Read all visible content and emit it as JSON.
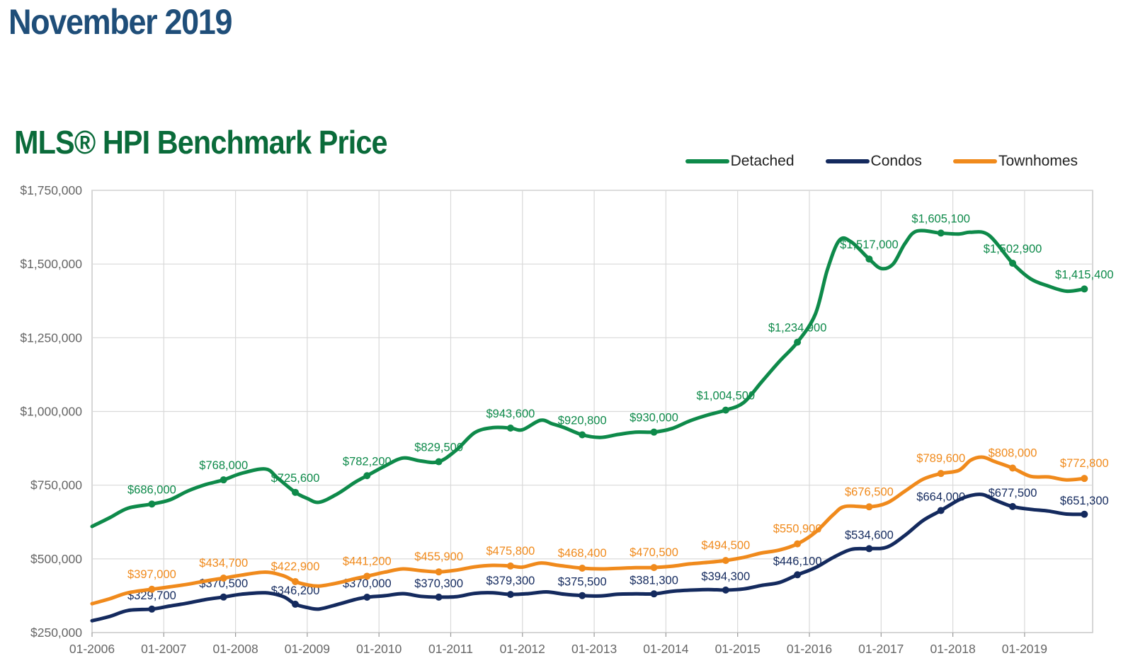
{
  "page": {
    "title": "November 2019"
  },
  "chart_data": {
    "type": "line",
    "title": "MLS® HPI Benchmark Price",
    "xlabel": "",
    "ylabel": "",
    "x_ticks": [
      "01-2006",
      "01-2007",
      "01-2008",
      "01-2009",
      "01-2010",
      "01-2011",
      "01-2012",
      "01-2013",
      "01-2014",
      "01-2015",
      "01-2016",
      "01-2017",
      "01-2018",
      "01-2019"
    ],
    "y_ticks": [
      "$250,000",
      "$500,000",
      "$750,000",
      "$1,000,000",
      "$1,250,000",
      "$1,500,000",
      "$1,750,000"
    ],
    "x_range": [
      "2006-01",
      "2019-11"
    ],
    "ylim": [
      250000,
      1750000
    ],
    "grid": true,
    "legend": "top-right",
    "series": [
      {
        "name": "Detached",
        "color": "#0e8a4a",
        "points": [
          [
            "2006-01",
            610000
          ],
          [
            "2006-04",
            640000
          ],
          [
            "2006-07",
            672000
          ],
          [
            "2006-11",
            686000
          ],
          [
            "2007-02",
            700000
          ],
          [
            "2007-05",
            730000
          ],
          [
            "2007-08",
            752000
          ],
          [
            "2007-11",
            768000
          ],
          [
            "2008-02",
            790000
          ],
          [
            "2008-06",
            805000
          ],
          [
            "2008-08",
            775000
          ],
          [
            "2008-11",
            725600
          ],
          [
            "2009-01",
            705000
          ],
          [
            "2009-03",
            692000
          ],
          [
            "2009-06",
            720000
          ],
          [
            "2009-09",
            760000
          ],
          [
            "2009-11",
            782200
          ],
          [
            "2010-02",
            815000
          ],
          [
            "2010-05",
            842000
          ],
          [
            "2010-08",
            832000
          ],
          [
            "2010-11",
            829500
          ],
          [
            "2011-02",
            870000
          ],
          [
            "2011-05",
            928000
          ],
          [
            "2011-08",
            945000
          ],
          [
            "2011-11",
            943600
          ],
          [
            "2012-01",
            938000
          ],
          [
            "2012-04",
            970000
          ],
          [
            "2012-06",
            958000
          ],
          [
            "2012-08",
            945000
          ],
          [
            "2012-11",
            920800
          ],
          [
            "2013-02",
            912000
          ],
          [
            "2013-05",
            922000
          ],
          [
            "2013-08",
            930000
          ],
          [
            "2013-11",
            930000
          ],
          [
            "2014-02",
            942000
          ],
          [
            "2014-05",
            968000
          ],
          [
            "2014-08",
            988000
          ],
          [
            "2014-11",
            1004500
          ],
          [
            "2015-02",
            1030000
          ],
          [
            "2015-05",
            1100000
          ],
          [
            "2015-08",
            1170000
          ],
          [
            "2015-11",
            1234900
          ],
          [
            "2016-02",
            1330000
          ],
          [
            "2016-04",
            1480000
          ],
          [
            "2016-06",
            1580000
          ],
          [
            "2016-08",
            1575000
          ],
          [
            "2016-11",
            1517000
          ],
          [
            "2017-01",
            1485000
          ],
          [
            "2017-03",
            1500000
          ],
          [
            "2017-05",
            1570000
          ],
          [
            "2017-07",
            1612000
          ],
          [
            "2017-11",
            1605100
          ],
          [
            "2018-02",
            1602000
          ],
          [
            "2018-04",
            1608000
          ],
          [
            "2018-07",
            1598000
          ],
          [
            "2018-11",
            1502900
          ],
          [
            "2019-02",
            1450000
          ],
          [
            "2019-05",
            1425000
          ],
          [
            "2019-08",
            1408000
          ],
          [
            "2019-11",
            1415400
          ]
        ],
        "labels": [
          {
            "x": "2006-11",
            "value": 686000,
            "text": "$686,000"
          },
          {
            "x": "2007-11",
            "value": 768000,
            "text": "$768,000"
          },
          {
            "x": "2008-11",
            "value": 725600,
            "text": "$725,600"
          },
          {
            "x": "2009-11",
            "value": 782200,
            "text": "$782,200"
          },
          {
            "x": "2010-11",
            "value": 829500,
            "text": "$829,500"
          },
          {
            "x": "2011-11",
            "value": 943600,
            "text": "$943,600"
          },
          {
            "x": "2012-11",
            "value": 920800,
            "text": "$920,800"
          },
          {
            "x": "2013-11",
            "value": 930000,
            "text": "$930,000"
          },
          {
            "x": "2014-11",
            "value": 1004500,
            "text": "$1,004,500"
          },
          {
            "x": "2015-11",
            "value": 1234900,
            "text": "$1,234,900"
          },
          {
            "x": "2016-11",
            "value": 1517000,
            "text": "$1,517,000"
          },
          {
            "x": "2017-11",
            "value": 1605100,
            "text": "$1,605,100"
          },
          {
            "x": "2018-11",
            "value": 1502900,
            "text": "$1,502,900"
          },
          {
            "x": "2019-11",
            "value": 1415400,
            "text": "$1,415,400"
          }
        ]
      },
      {
        "name": "Condos",
        "color": "#142a5e",
        "points": [
          [
            "2006-01",
            290000
          ],
          [
            "2006-04",
            305000
          ],
          [
            "2006-07",
            325000
          ],
          [
            "2006-11",
            329700
          ],
          [
            "2007-02",
            340000
          ],
          [
            "2007-05",
            350000
          ],
          [
            "2007-08",
            362000
          ],
          [
            "2007-11",
            370500
          ],
          [
            "2008-02",
            380000
          ],
          [
            "2008-06",
            385000
          ],
          [
            "2008-09",
            372000
          ],
          [
            "2008-11",
            346200
          ],
          [
            "2009-01",
            335000
          ],
          [
            "2009-03",
            330000
          ],
          [
            "2009-06",
            345000
          ],
          [
            "2009-09",
            362000
          ],
          [
            "2009-11",
            370000
          ],
          [
            "2010-02",
            375000
          ],
          [
            "2010-05",
            382000
          ],
          [
            "2010-08",
            373000
          ],
          [
            "2010-11",
            370300
          ],
          [
            "2011-02",
            372000
          ],
          [
            "2011-05",
            383000
          ],
          [
            "2011-08",
            385000
          ],
          [
            "2011-11",
            379300
          ],
          [
            "2012-02",
            382000
          ],
          [
            "2012-05",
            388000
          ],
          [
            "2012-08",
            380000
          ],
          [
            "2012-11",
            375500
          ],
          [
            "2013-02",
            374000
          ],
          [
            "2013-05",
            380000
          ],
          [
            "2013-08",
            381300
          ],
          [
            "2013-11",
            381300
          ],
          [
            "2014-02",
            390000
          ],
          [
            "2014-05",
            394000
          ],
          [
            "2014-08",
            396000
          ],
          [
            "2014-11",
            394300
          ],
          [
            "2015-02",
            398000
          ],
          [
            "2015-05",
            410000
          ],
          [
            "2015-08",
            420000
          ],
          [
            "2015-11",
            446100
          ],
          [
            "2016-02",
            470000
          ],
          [
            "2016-05",
            505000
          ],
          [
            "2016-08",
            532000
          ],
          [
            "2016-11",
            534600
          ],
          [
            "2017-02",
            540000
          ],
          [
            "2017-05",
            580000
          ],
          [
            "2017-08",
            630000
          ],
          [
            "2017-11",
            664000
          ],
          [
            "2018-02",
            700000
          ],
          [
            "2018-04",
            715000
          ],
          [
            "2018-06",
            718000
          ],
          [
            "2018-08",
            700000
          ],
          [
            "2018-11",
            677500
          ],
          [
            "2019-02",
            668000
          ],
          [
            "2019-05",
            662000
          ],
          [
            "2019-08",
            652000
          ],
          [
            "2019-11",
            651300
          ]
        ],
        "labels": [
          {
            "x": "2006-11",
            "value": 329700,
            "text": "$329,700"
          },
          {
            "x": "2007-11",
            "value": 370500,
            "text": "$370,500"
          },
          {
            "x": "2008-11",
            "value": 346200,
            "text": "$346,200"
          },
          {
            "x": "2009-11",
            "value": 370000,
            "text": "$370,000"
          },
          {
            "x": "2010-11",
            "value": 370300,
            "text": "$370,300"
          },
          {
            "x": "2011-11",
            "value": 379300,
            "text": "$379,300"
          },
          {
            "x": "2012-11",
            "value": 375500,
            "text": "$375,500"
          },
          {
            "x": "2013-11",
            "value": 381300,
            "text": "$381,300"
          },
          {
            "x": "2014-11",
            "value": 394300,
            "text": "$394,300"
          },
          {
            "x": "2015-11",
            "value": 446100,
            "text": "$446,100"
          },
          {
            "x": "2016-11",
            "value": 534600,
            "text": "$534,600"
          },
          {
            "x": "2017-11",
            "value": 664000,
            "text": "$664,000"
          },
          {
            "x": "2018-11",
            "value": 677500,
            "text": "$677,500"
          },
          {
            "x": "2019-11",
            "value": 651300,
            "text": "$651,300"
          }
        ]
      },
      {
        "name": "Townhomes",
        "color": "#f08a1c",
        "points": [
          [
            "2006-01",
            348000
          ],
          [
            "2006-04",
            365000
          ],
          [
            "2006-07",
            385000
          ],
          [
            "2006-11",
            397000
          ],
          [
            "2007-02",
            405000
          ],
          [
            "2007-05",
            414000
          ],
          [
            "2007-08",
            425000
          ],
          [
            "2007-11",
            434700
          ],
          [
            "2008-02",
            445000
          ],
          [
            "2008-06",
            455000
          ],
          [
            "2008-09",
            443000
          ],
          [
            "2008-11",
            422900
          ],
          [
            "2009-01",
            412000
          ],
          [
            "2009-03",
            408000
          ],
          [
            "2009-06",
            418000
          ],
          [
            "2009-09",
            433000
          ],
          [
            "2009-11",
            441200
          ],
          [
            "2010-02",
            455000
          ],
          [
            "2010-05",
            466000
          ],
          [
            "2010-08",
            460000
          ],
          [
            "2010-11",
            455900
          ],
          [
            "2011-02",
            462000
          ],
          [
            "2011-05",
            473000
          ],
          [
            "2011-08",
            478000
          ],
          [
            "2011-11",
            475800
          ],
          [
            "2012-01",
            472000
          ],
          [
            "2012-04",
            486000
          ],
          [
            "2012-07",
            478000
          ],
          [
            "2012-11",
            468400
          ],
          [
            "2013-02",
            466000
          ],
          [
            "2013-05",
            468000
          ],
          [
            "2013-08",
            470000
          ],
          [
            "2013-11",
            470500
          ],
          [
            "2014-02",
            475000
          ],
          [
            "2014-05",
            483000
          ],
          [
            "2014-08",
            488000
          ],
          [
            "2014-11",
            494500
          ],
          [
            "2015-02",
            505000
          ],
          [
            "2015-05",
            520000
          ],
          [
            "2015-08",
            530000
          ],
          [
            "2015-11",
            550900
          ],
          [
            "2016-02",
            590000
          ],
          [
            "2016-05",
            650000
          ],
          [
            "2016-07",
            678000
          ],
          [
            "2016-11",
            676500
          ],
          [
            "2017-02",
            690000
          ],
          [
            "2017-05",
            730000
          ],
          [
            "2017-08",
            770000
          ],
          [
            "2017-11",
            789600
          ],
          [
            "2018-02",
            800000
          ],
          [
            "2018-04",
            835000
          ],
          [
            "2018-06",
            845000
          ],
          [
            "2018-08",
            830000
          ],
          [
            "2018-11",
            808000
          ],
          [
            "2019-02",
            780000
          ],
          [
            "2019-05",
            778000
          ],
          [
            "2019-08",
            768000
          ],
          [
            "2019-11",
            772800
          ]
        ],
        "labels": [
          {
            "x": "2006-11",
            "value": 397000,
            "text": "$397,000"
          },
          {
            "x": "2007-11",
            "value": 434700,
            "text": "$434,700"
          },
          {
            "x": "2008-11",
            "value": 422900,
            "text": "$422,900"
          },
          {
            "x": "2009-11",
            "value": 441200,
            "text": "$441,200"
          },
          {
            "x": "2010-11",
            "value": 455900,
            "text": "$455,900"
          },
          {
            "x": "2011-11",
            "value": 475800,
            "text": "$475,800"
          },
          {
            "x": "2012-11",
            "value": 468400,
            "text": "$468,400"
          },
          {
            "x": "2013-11",
            "value": 470500,
            "text": "$470,500"
          },
          {
            "x": "2014-11",
            "value": 494500,
            "text": "$494,500"
          },
          {
            "x": "2015-11",
            "value": 550900,
            "text": "$550,900"
          },
          {
            "x": "2016-11",
            "value": 676500,
            "text": "$676,500"
          },
          {
            "x": "2017-11",
            "value": 789600,
            "text": "$789,600"
          },
          {
            "x": "2018-11",
            "value": 808000,
            "text": "$808,000"
          },
          {
            "x": "2019-11",
            "value": 772800,
            "text": "$772,800"
          }
        ]
      }
    ]
  }
}
